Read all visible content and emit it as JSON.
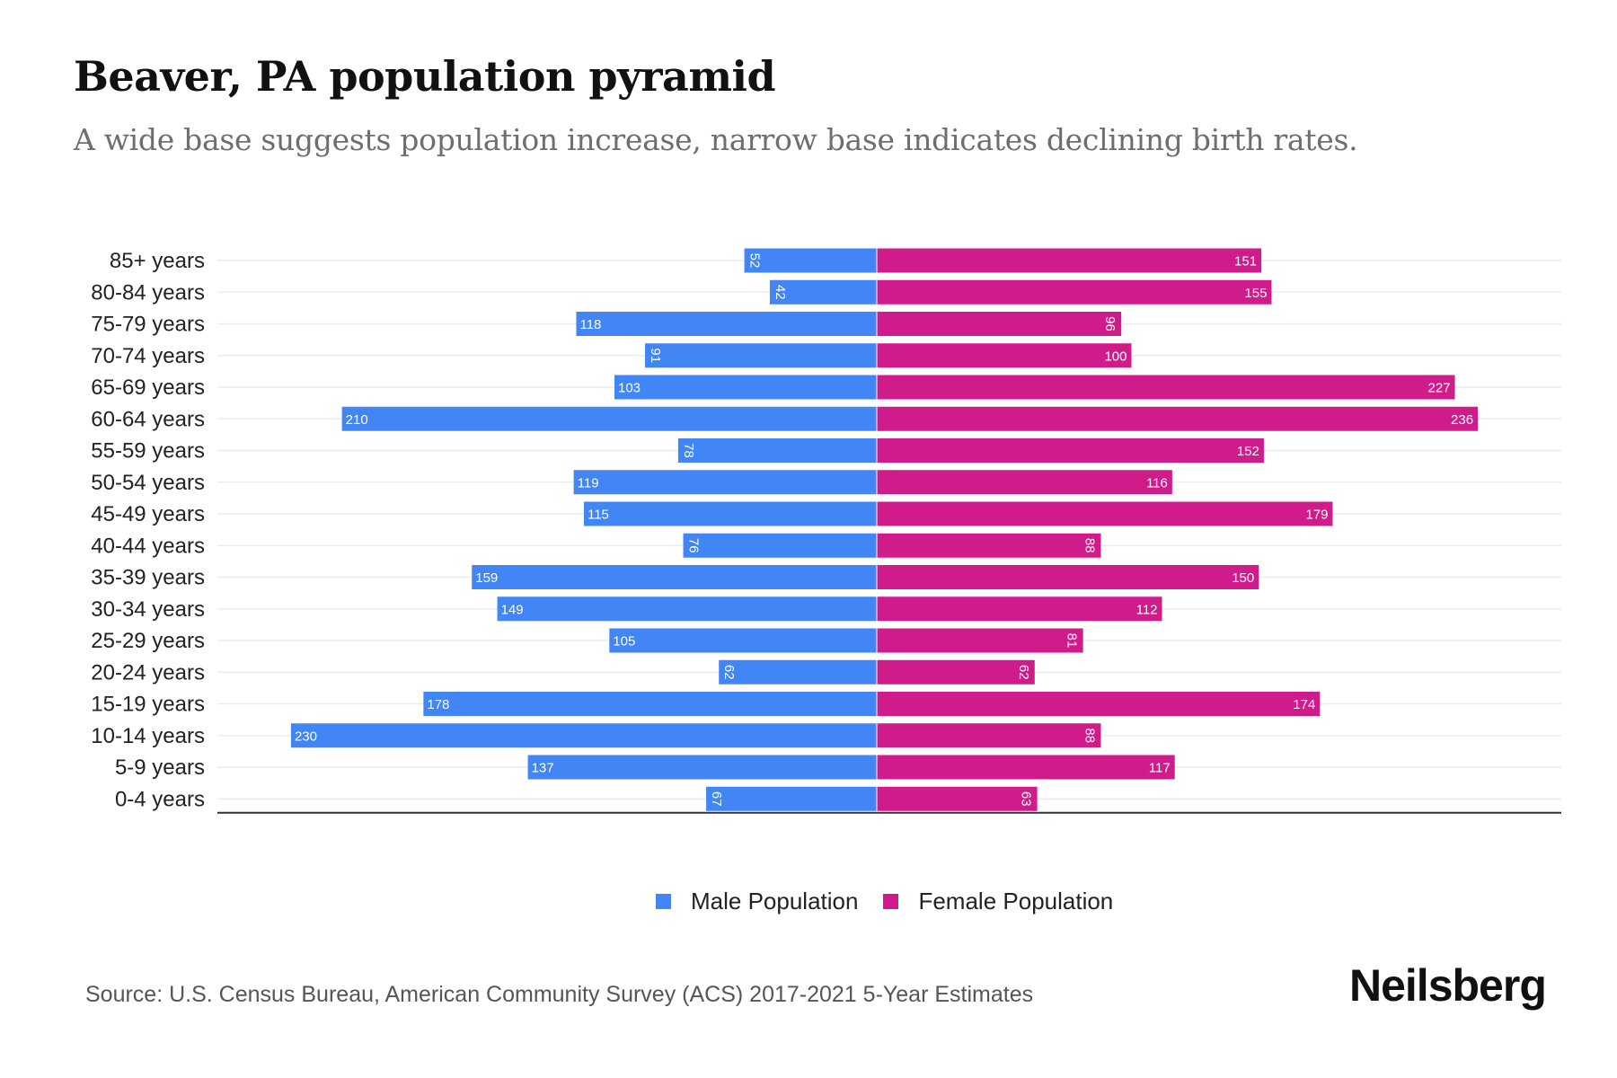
{
  "header": {
    "title": "Beaver, PA population pyramid",
    "subtitle": "A wide base suggests population increase, narrow base indicates declining birth rates."
  },
  "legend": {
    "male_label": "Male Population",
    "female_label": "Female Population"
  },
  "footer": {
    "source": "Source: U.S. Census Bureau, American Community Survey (ACS) 2017-2021 5-Year Estimates",
    "brand": "Neilsberg"
  },
  "colors": {
    "male": "#4285f4",
    "female": "#d01c8b",
    "gridline": "#ececec",
    "axis": "#333333"
  },
  "chart_data": {
    "type": "bar",
    "orientation": "horizontal",
    "layout": "population-pyramid",
    "title": "Beaver, PA population pyramid",
    "subtitle": "A wide base suggests population increase, narrow base indicates declining birth rates.",
    "xlabel": "",
    "ylabel": "",
    "legend_position": "bottom-center",
    "grid": true,
    "categories": [
      "85+ years",
      "80-84 years",
      "75-79 years",
      "70-74 years",
      "65-69 years",
      "60-64 years",
      "55-59 years",
      "50-54 years",
      "45-49 years",
      "40-44 years",
      "35-39 years",
      "30-34 years",
      "25-29 years",
      "20-24 years",
      "15-19 years",
      "10-14 years",
      "5-9 years",
      "0-4 years"
    ],
    "series": [
      {
        "name": "Male Population",
        "side": "left",
        "values": [
          52,
          42,
          118,
          91,
          103,
          210,
          78,
          119,
          115,
          76,
          159,
          149,
          105,
          62,
          178,
          230,
          137,
          67
        ]
      },
      {
        "name": "Female Population",
        "side": "right",
        "values": [
          151,
          155,
          96,
          100,
          227,
          236,
          152,
          116,
          179,
          88,
          150,
          112,
          81,
          62,
          174,
          88,
          117,
          63
        ]
      }
    ],
    "xlim": [
      -256,
      262
    ]
  }
}
